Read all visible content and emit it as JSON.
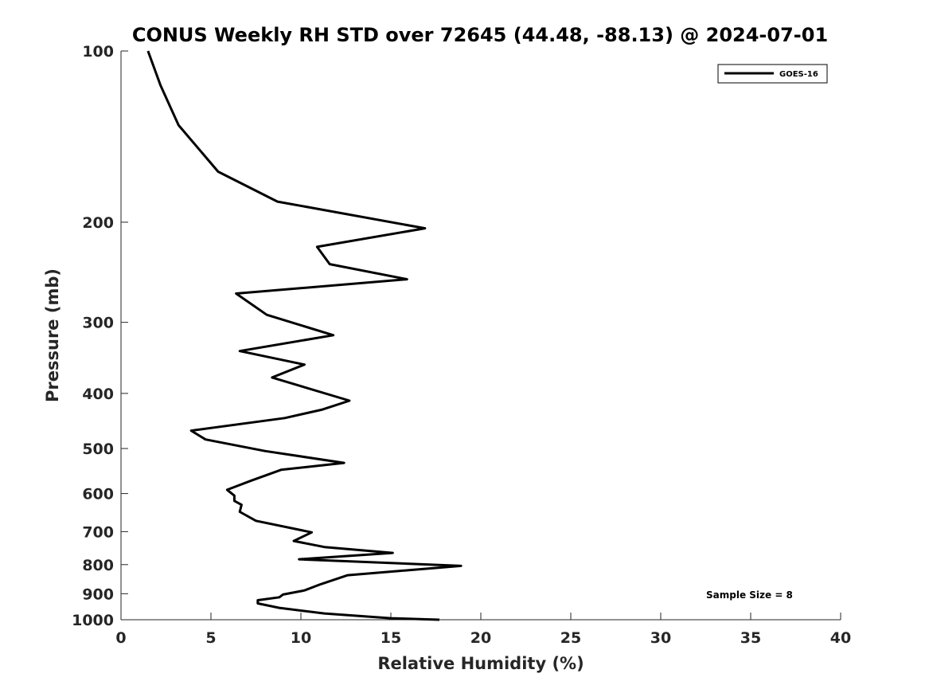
{
  "chart_data": {
    "type": "line",
    "title": "CONUS Weekly RH STD over 72645 (44.48, -88.13) @ 2024-07-01",
    "xlabel": "Relative Humidity (%)",
    "ylabel": "Pressure (mb)",
    "xlim": [
      0,
      40
    ],
    "ylim": [
      100,
      1000
    ],
    "y_scale": "log",
    "y_reversed": true,
    "x_ticks": [
      "0",
      "5",
      "10",
      "15",
      "20",
      "25",
      "30",
      "35",
      "40"
    ],
    "y_ticks": [
      "100",
      "200",
      "300",
      "400",
      "500",
      "600",
      "700",
      "800",
      "900",
      "1000"
    ],
    "grid": false,
    "legend": {
      "position": "top-right",
      "entries": [
        "GOES-16"
      ]
    },
    "annotation": "Sample Size = 8",
    "series": [
      {
        "name": "GOES-16",
        "color": "#000000",
        "x": [
          1.5,
          2.2,
          3.2,
          5.4,
          8.7,
          16.9,
          10.9,
          11.6,
          15.9,
          6.4,
          8.1,
          11.8,
          6.6,
          10.2,
          8.4,
          12.7,
          11.2,
          9.1,
          3.9,
          4.7,
          8.0,
          12.4,
          8.9,
          7.2,
          5.9,
          6.3,
          6.3,
          6.7,
          6.6,
          7.5,
          10.6,
          9.6,
          11.3,
          15.1,
          9.9,
          18.9,
          12.6,
          11.1,
          10.2,
          9.0,
          8.8,
          7.6,
          7.6,
          8.8,
          11.3,
          15.0,
          17.7
        ],
        "y": [
          100,
          115,
          135,
          163,
          184,
          205,
          221,
          237,
          252,
          267,
          291,
          316,
          337,
          356,
          375,
          412,
          427,
          442,
          465,
          482,
          505,
          530,
          545,
          570,
          591,
          605,
          618,
          628,
          646,
          670,
          702,
          727,
          745,
          763,
          783,
          804,
          835,
          866,
          888,
          903,
          913,
          924,
          936,
          953,
          975,
          994,
          1000
        ]
      }
    ]
  }
}
